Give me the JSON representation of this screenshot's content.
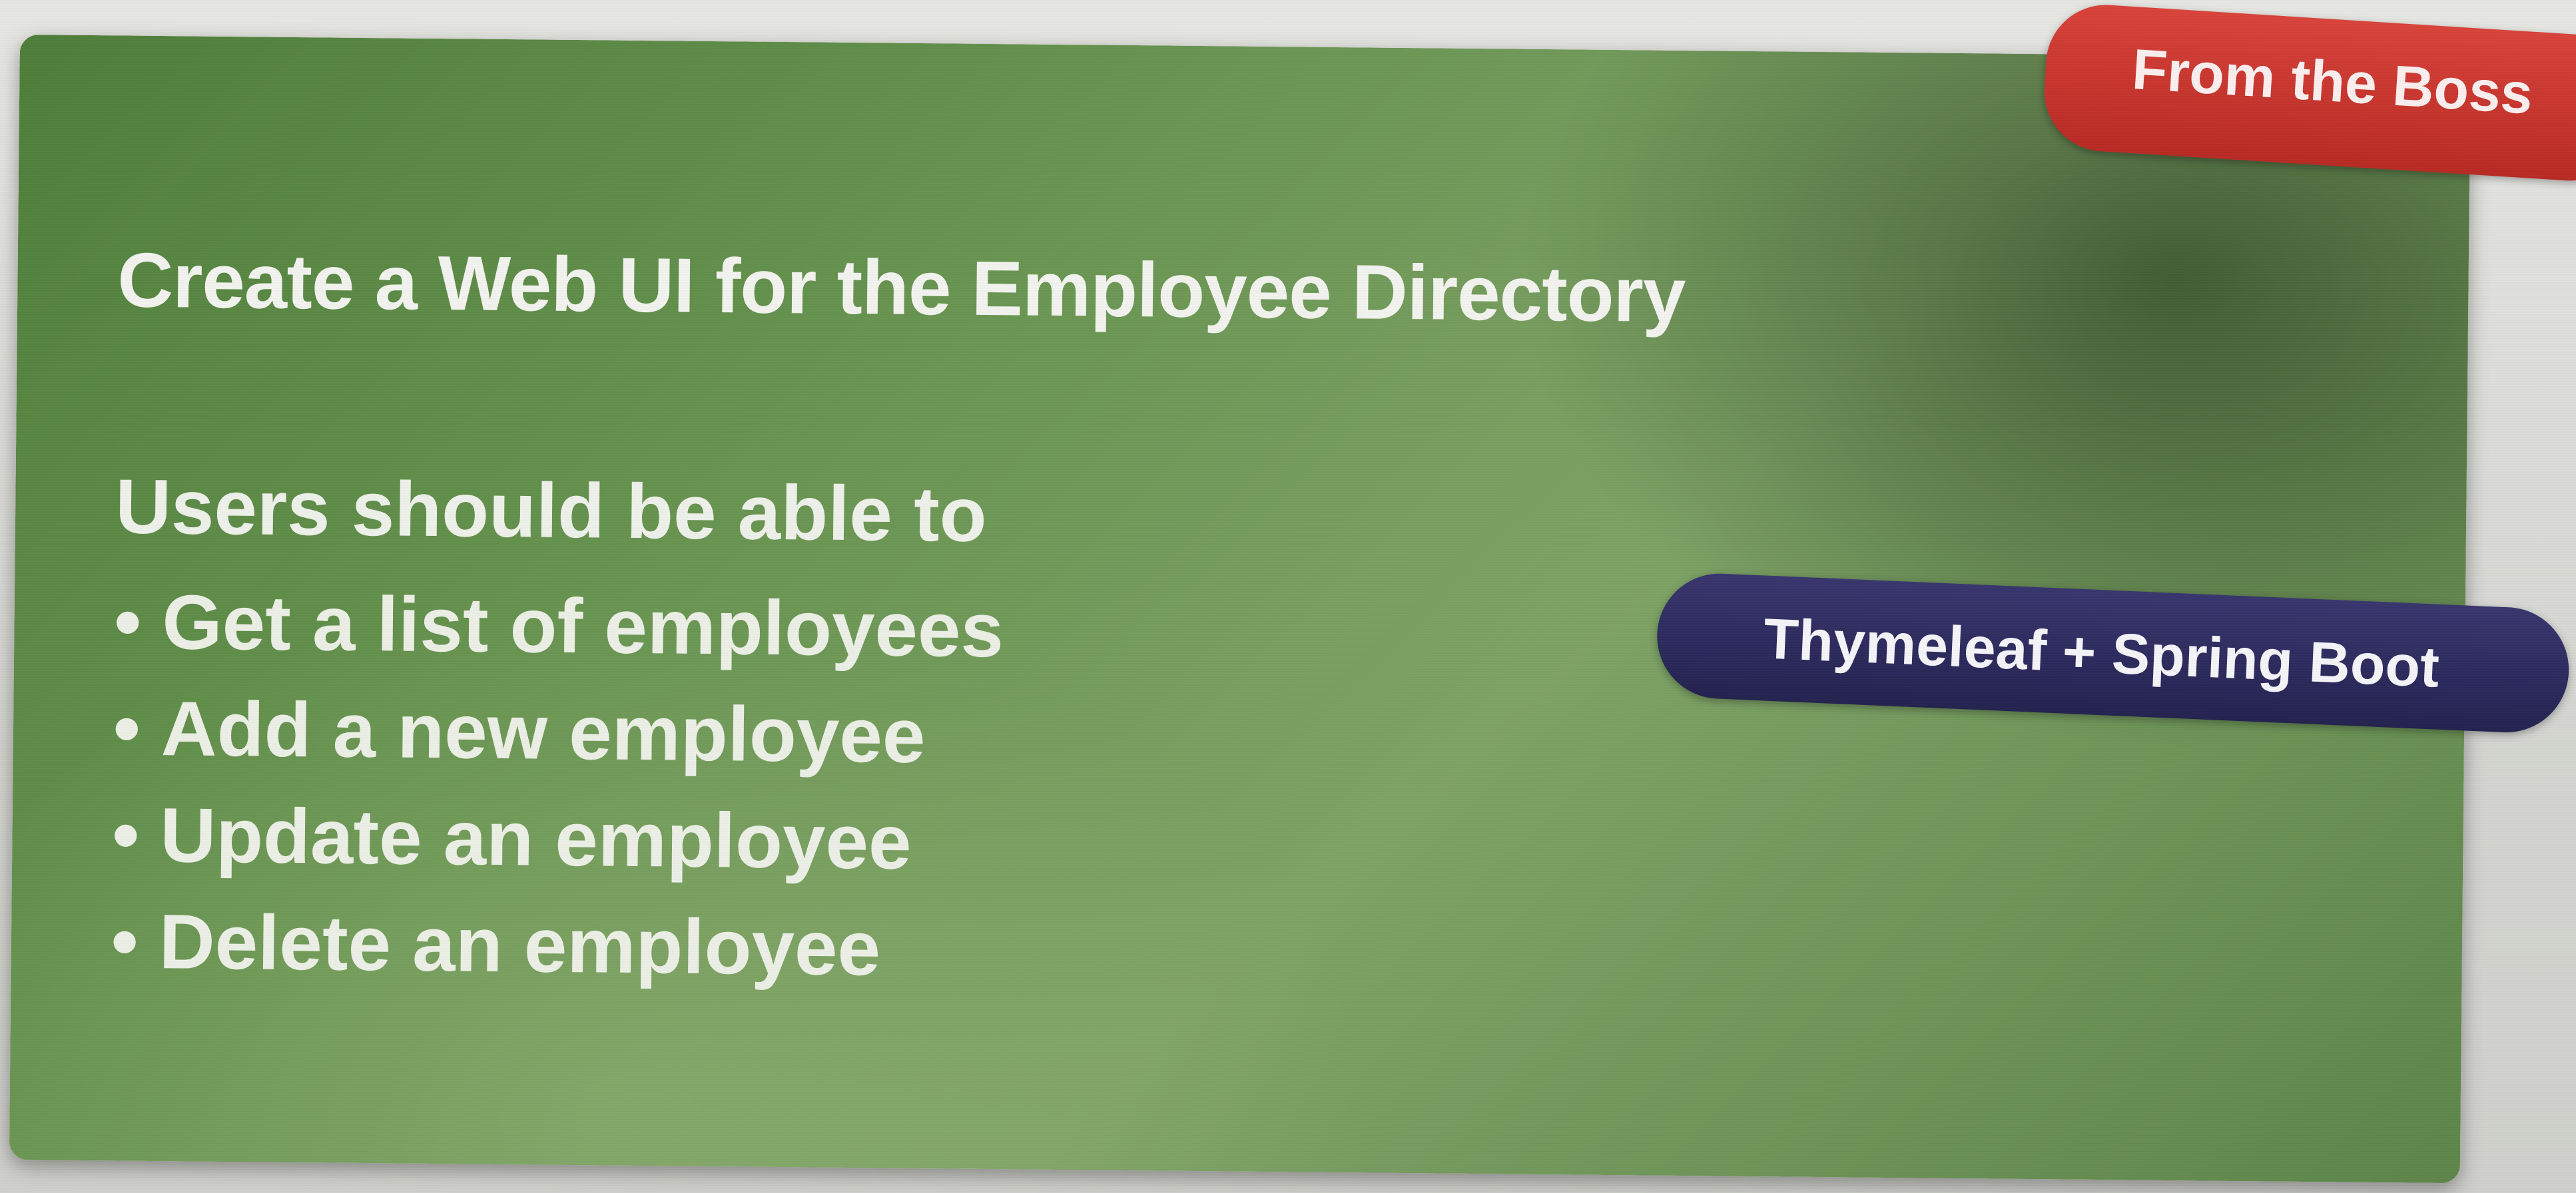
{
  "slide": {
    "title": "Create a Web UI for the Employee Directory",
    "heading": "Users should be able to",
    "bullet_char": "•",
    "items": [
      {
        "label": "Get a list of employees"
      },
      {
        "label": "Add a new employee"
      },
      {
        "label": "Update an employee"
      },
      {
        "label": "Delete an employee"
      }
    ]
  },
  "tags": {
    "boss": "From the Boss",
    "tech": "Thymeleaf + Spring Boot"
  },
  "colors": {
    "slide_green": "#6a9552",
    "boss_tag_red": "#c93430",
    "tech_pill_navy": "#2e2c5f",
    "text": "#f2f3ee"
  }
}
